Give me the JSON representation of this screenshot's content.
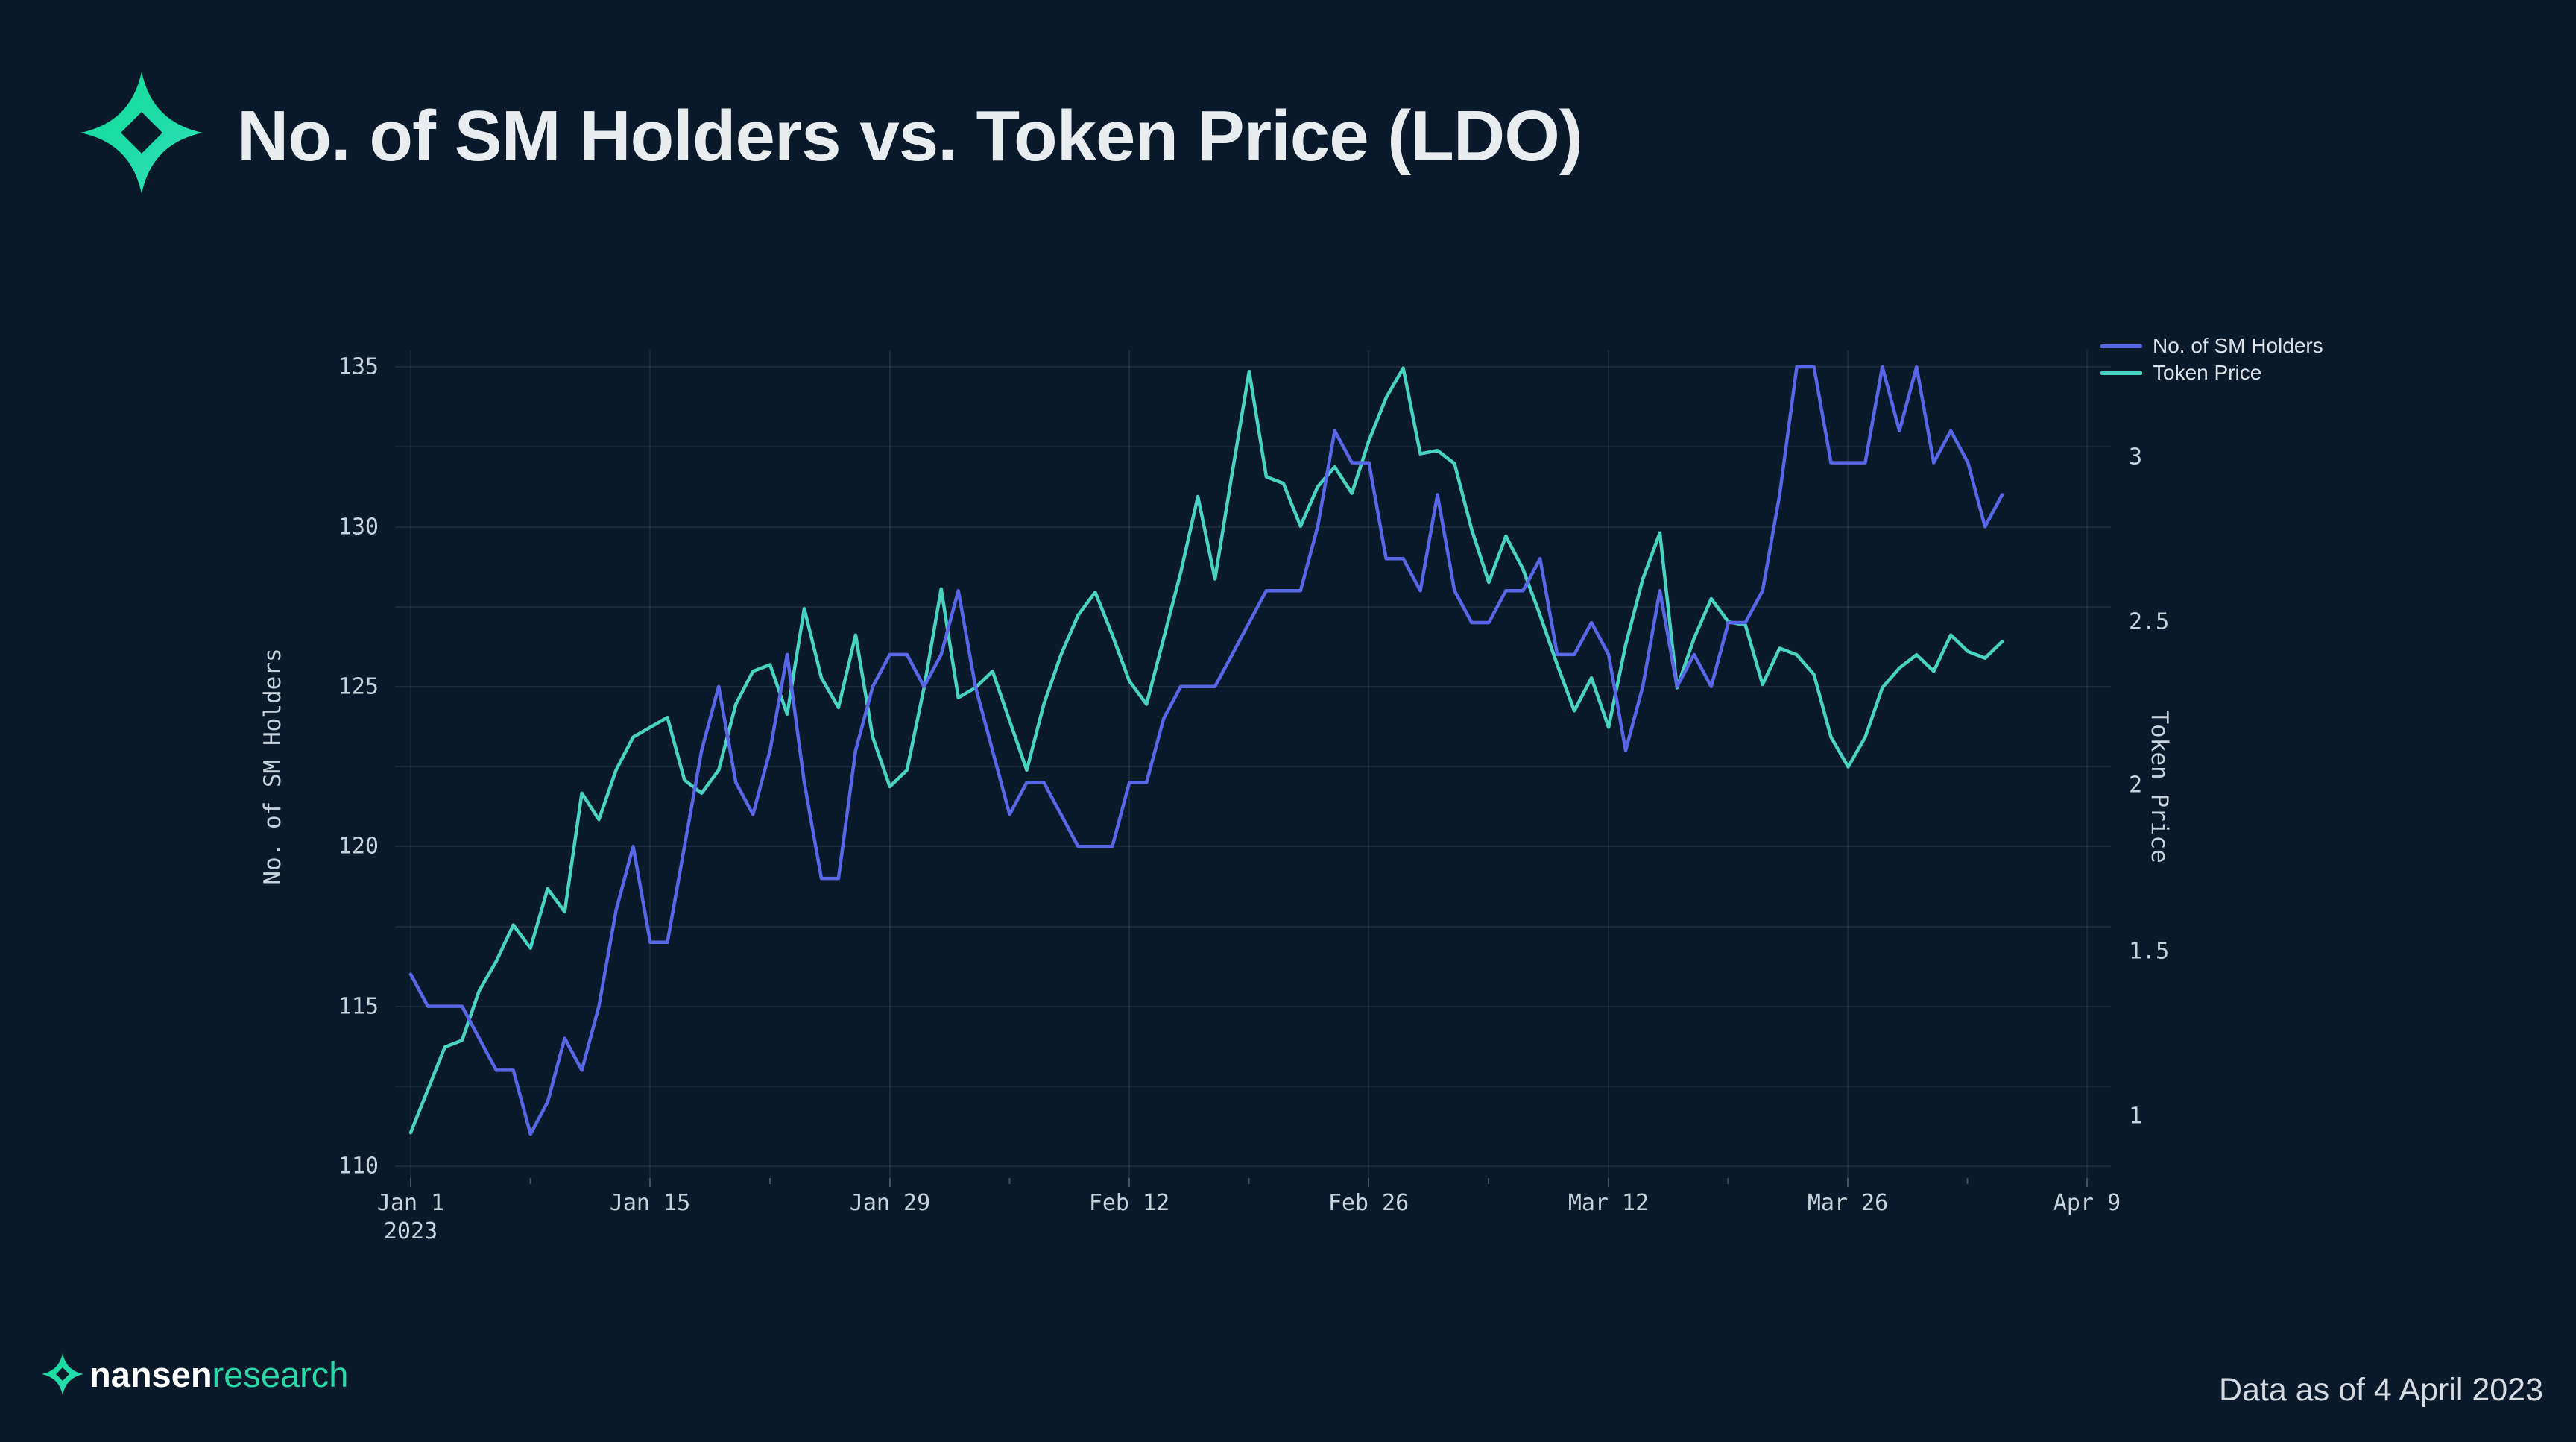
{
  "header": {
    "title": "No. of SM Holders vs. Token Price (LDO)"
  },
  "legend": [
    {
      "label": "No. of SM Holders",
      "color": "#5867E8"
    },
    {
      "label": "Token Price",
      "color": "#48D3C2"
    }
  ],
  "axes": {
    "left": {
      "title": "No. of SM Holders",
      "ticks": [
        135,
        130,
        125,
        120,
        115,
        110
      ]
    },
    "right": {
      "title": "Token Price",
      "ticks": [
        "3",
        "2.5",
        "2",
        "1.5",
        "1"
      ]
    },
    "x": {
      "ticks": [
        "Jan 1",
        "Jan 15",
        "Jan 29",
        "Feb 12",
        "Feb 26",
        "Mar 12",
        "Mar 26",
        "Apr 9"
      ],
      "year_label": "2023"
    }
  },
  "footer": {
    "brand_primary": "nansen",
    "brand_secondary": "research",
    "note": "Data as of 4 April 2023"
  },
  "colors": {
    "background": "#0A1A2B",
    "holders_line": "#5867E8",
    "price_line": "#48D3C2",
    "grid": "rgba(255,255,255,0.07)",
    "tick_text": "#C9D3DB",
    "logo_green_start": "#14DF9C",
    "logo_green_end": "#3BE6C3"
  },
  "chart_data": {
    "type": "line",
    "x": {
      "start": "2023-01-01",
      "end": "2023-04-04",
      "frequency": "daily",
      "n": 94
    },
    "x_axis_span": {
      "first_tick": "2023-01-01",
      "last_tick": "2023-04-09",
      "tick_interval_days": 14
    },
    "left_axis_range": [
      109.6,
      135.5
    ],
    "right_axis_range": [
      0.81,
      3.33
    ],
    "grid": true,
    "legend_position": "top-right",
    "series": [
      {
        "name": "No. of SM Holders",
        "axis": "left",
        "color": "#5867E8",
        "values": [
          116,
          115,
          115,
          115,
          114,
          113,
          113,
          111,
          112,
          114,
          113,
          115,
          118,
          120,
          117,
          117,
          120,
          123,
          125,
          122,
          121,
          123,
          126,
          122,
          119,
          119,
          123,
          125,
          126,
          126,
          125,
          126,
          128,
          125,
          123,
          121,
          122,
          122,
          121,
          120,
          120,
          120,
          122,
          122,
          124,
          125,
          125,
          125,
          126,
          127,
          128,
          128,
          128,
          130,
          133,
          132,
          132,
          129,
          129,
          128,
          131,
          128,
          127,
          127,
          128,
          128,
          129,
          126,
          126,
          127,
          126,
          123,
          125,
          128,
          125,
          126,
          125,
          127,
          127,
          128,
          131,
          135,
          135,
          132,
          132,
          132,
          135,
          133,
          135,
          132,
          133,
          132,
          130,
          131
        ]
      },
      {
        "name": "Token Price",
        "axis": "right",
        "color": "#48D3C2",
        "values": [
          0.95,
          1.08,
          1.21,
          1.23,
          1.38,
          1.47,
          1.58,
          1.51,
          1.69,
          1.62,
          1.98,
          1.9,
          2.05,
          2.15,
          2.18,
          2.21,
          2.02,
          1.98,
          2.05,
          2.25,
          2.35,
          2.37,
          2.22,
          2.54,
          2.33,
          2.24,
          2.46,
          2.15,
          2.0,
          2.05,
          2.3,
          2.6,
          2.27,
          2.3,
          2.35,
          2.2,
          2.05,
          2.25,
          2.4,
          2.52,
          2.59,
          2.46,
          2.32,
          2.25,
          2.45,
          2.65,
          2.88,
          2.63,
          2.95,
          3.26,
          2.94,
          2.92,
          2.79,
          2.91,
          2.97,
          2.89,
          3.05,
          3.18,
          3.27,
          3.01,
          3.02,
          2.98,
          2.78,
          2.62,
          2.76,
          2.66,
          2.52,
          2.37,
          2.23,
          2.33,
          2.18,
          2.43,
          2.63,
          2.77,
          2.3,
          2.45,
          2.57,
          2.5,
          2.49,
          2.31,
          2.42,
          2.4,
          2.34,
          2.15,
          2.06,
          2.15,
          2.3,
          2.36,
          2.4,
          2.35,
          2.46,
          2.41,
          2.39,
          2.44
        ]
      }
    ],
    "title": "No. of SM Holders vs. Token Price (LDO)"
  }
}
